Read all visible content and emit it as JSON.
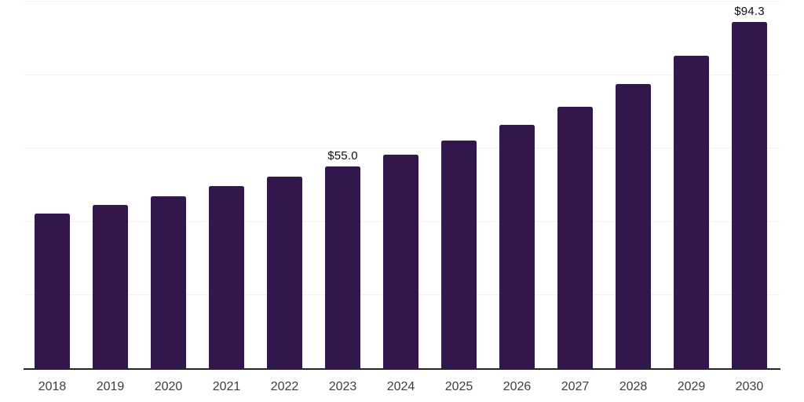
{
  "chart_data": {
    "type": "bar",
    "title": "",
    "xlabel": "",
    "ylabel": "",
    "categories": [
      "2018",
      "2019",
      "2020",
      "2021",
      "2022",
      "2023",
      "2024",
      "2025",
      "2026",
      "2027",
      "2028",
      "2029",
      "2030"
    ],
    "values": [
      42.0,
      44.5,
      46.9,
      49.5,
      52.2,
      55.0,
      58.2,
      61.9,
      66.3,
      71.2,
      77.4,
      85.0,
      94.3
    ],
    "bar_labels": [
      "",
      "",
      "",
      "",
      "",
      "$55.0",
      "",
      "",
      "",
      "",
      "",
      "",
      "$94.3"
    ],
    "ylim": [
      0,
      100
    ],
    "gridline_step": 20,
    "grid": "on",
    "legend": "none",
    "colors": {
      "bar": "#32174d",
      "gridline": "#f2f2f2",
      "axis_line": "#262626",
      "tick_label": "#3d3d3d",
      "data_label": "#0f0f0f",
      "background": "#ffffff"
    }
  }
}
